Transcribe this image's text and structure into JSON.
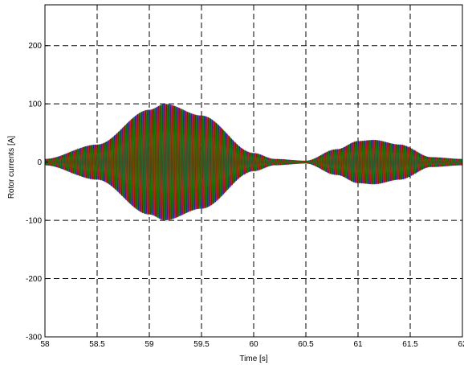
{
  "chart_data": {
    "type": "line",
    "title": "",
    "xlabel": "Time [s]",
    "ylabel": "Rotor currents [A]",
    "xlim": [
      58,
      62
    ],
    "ylim": [
      -300,
      270
    ],
    "xticks": [
      "58",
      "58.5",
      "59",
      "59.5",
      "60",
      "60.5",
      "61",
      "61.5",
      "62"
    ],
    "yticks": [
      "-300",
      "-200",
      "-100",
      "0",
      "100",
      "200"
    ],
    "grid": true,
    "series_colors": [
      "#0000ff",
      "#ff0000",
      "#008000"
    ],
    "envelope_amplitude": {
      "x": [
        58.0,
        58.5,
        59.0,
        59.15,
        59.5,
        60.0,
        60.2,
        60.5,
        60.8,
        61.0,
        61.15,
        61.4,
        61.7,
        62.0
      ],
      "y": [
        5,
        30,
        90,
        100,
        80,
        15,
        5,
        2,
        22,
        36,
        38,
        30,
        8,
        5
      ]
    }
  }
}
